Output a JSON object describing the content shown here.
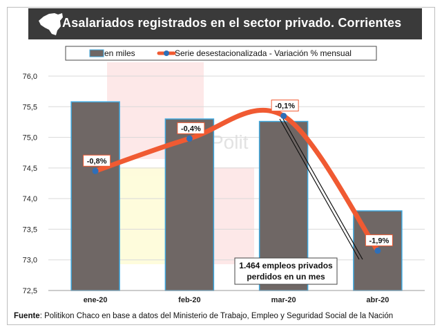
{
  "header": {
    "title": "Asalariados registrados en el sector privado. Corrientes"
  },
  "source": {
    "label": "Fuente",
    "text": ": Politikon Chaco en base a datos del Ministerio de Trabajo, Empleo y Seguridad Social de la Nación"
  },
  "watermark": {
    "text": "Polit"
  },
  "colors": {
    "bar": "#6f6765",
    "bar_border": "#3fa9e0",
    "line": "#f05a32",
    "marker": "#2e6fb8",
    "title_bg": "#3a3a3a"
  },
  "chart_data": {
    "type": "bar",
    "categories": [
      "ene-20",
      "feb-20",
      "mar-20",
      "abr-20"
    ],
    "series": [
      {
        "name": "en miles",
        "type": "bar",
        "values": [
          75.58,
          75.3,
          75.26,
          73.8
        ]
      },
      {
        "name": "Serie desestacionalizada - Variación % mensual",
        "type": "line",
        "values": [
          74.45,
          74.98,
          75.35,
          73.15
        ],
        "labels": [
          "-0,8%",
          "-0,4%",
          "-0,1%",
          "-1,9%"
        ]
      }
    ],
    "ylim": [
      72.5,
      76.0
    ],
    "yticks": [
      "72,5",
      "73,0",
      "73,5",
      "74,0",
      "74,5",
      "75,0",
      "75,5",
      "76,0"
    ],
    "grid": true,
    "legend_position": "top",
    "annotation": {
      "line1": "1.464 empleos privados",
      "line2": "perdidos en un mes"
    }
  }
}
